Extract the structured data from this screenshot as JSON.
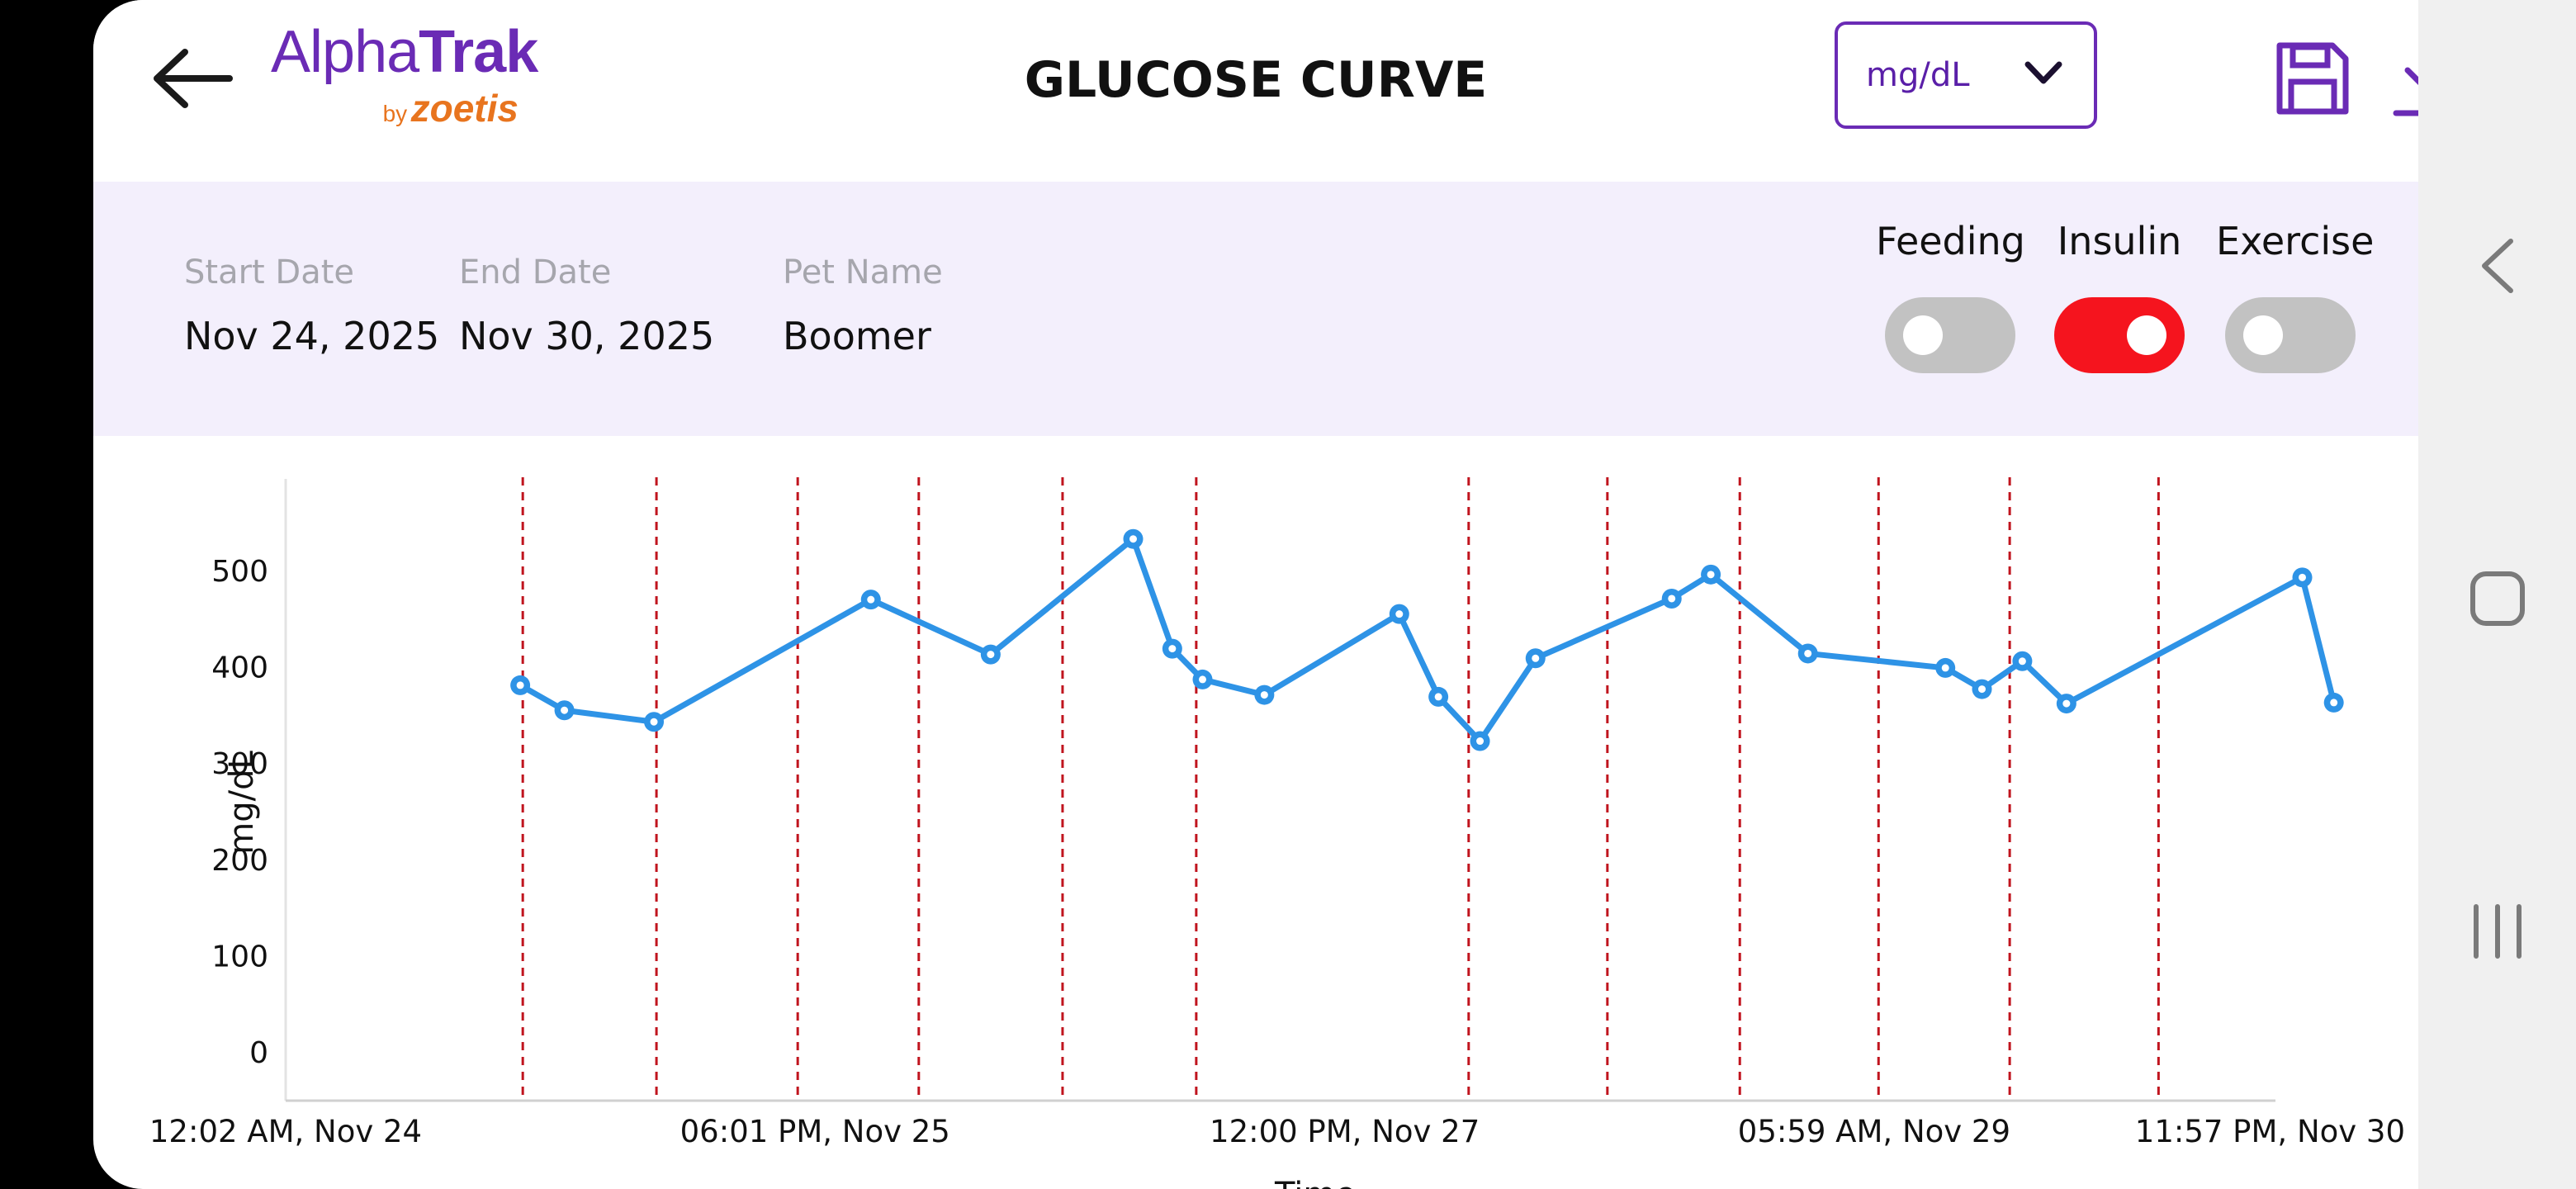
{
  "header": {
    "logo_main_light": "Alpha",
    "logo_main_bold": "Trak",
    "logo_by": "by",
    "logo_brand": "zoetis",
    "title": "GLUCOSE CURVE",
    "unit_selected": "mg/dL",
    "icons": {
      "back": "arrow-left-icon",
      "dropdown": "chevron-down-icon",
      "save": "floppy-disk-icon",
      "download": "download-icon"
    },
    "accent_color": "#6a2bb5"
  },
  "filters": {
    "start_date": {
      "label": "Start Date",
      "value": "Nov 24, 2025"
    },
    "end_date": {
      "label": "End Date",
      "value": "Nov 30, 2025"
    },
    "pet_name": {
      "label": "Pet Name",
      "value": "Boomer"
    },
    "toggles": [
      {
        "label": "Feeding",
        "on": false
      },
      {
        "label": "Insulin",
        "on": true
      },
      {
        "label": "Exercise",
        "on": false
      }
    ],
    "toggle_on_color": "#f5141e",
    "toggle_off_color": "#c2c2c2"
  },
  "chart_data": {
    "type": "line",
    "ylabel": "mg/dL",
    "xlabel": "Time",
    "ylim": [
      0,
      550
    ],
    "yticks": [
      0,
      100,
      200,
      300,
      400,
      500
    ],
    "x_range_hours": [
      0,
      167.92
    ],
    "x_ticks": [
      {
        "hours": 0,
        "label": "12:02 AM, Nov 24"
      },
      {
        "hours": 41.98,
        "label": "06:01 PM, Nov 25"
      },
      {
        "hours": 83.97,
        "label": "12:00 PM, Nov 27"
      },
      {
        "hours": 125.95,
        "label": "05:59 AM, Nov 29"
      },
      {
        "hours": 167.92,
        "label": "11:57 PM, Nov 30"
      }
    ],
    "series": [
      {
        "color": "#2e93e6",
        "x": [
          18.6,
          22.1,
          29.2,
          46.4,
          55.9,
          67.2,
          70.3,
          72.7,
          77.6,
          88.3,
          91.4,
          94.7,
          99.1,
          109.9,
          113.0,
          120.7,
          131.6,
          134.5,
          137.7,
          141.2,
          159.9,
          162.4
        ],
        "y": [
          380,
          354,
          342,
          469,
          412,
          532,
          418,
          386,
          370,
          454,
          368,
          322,
          408,
          470,
          495,
          413,
          398,
          376,
          405,
          361,
          492,
          362
        ]
      }
    ],
    "insulin_events_hours": [
      18.8,
      29.4,
      40.6,
      50.2,
      61.6,
      72.2,
      93.8,
      104.8,
      115.3,
      126.3,
      136.7,
      148.5
    ],
    "insulin_marker_color": "#c0141e"
  }
}
